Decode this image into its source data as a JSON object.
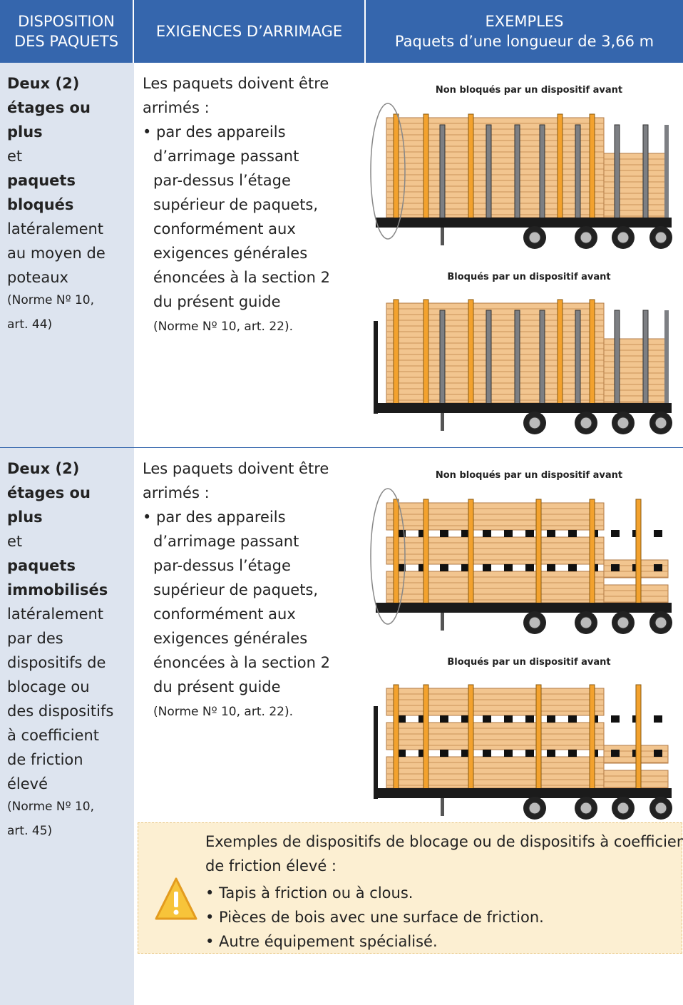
{
  "header": {
    "col1": [
      "DISPOSITION",
      "DES PAQUETS"
    ],
    "col2": [
      "EXIGENCES D’ARRIMAGE"
    ],
    "col3": [
      "EXEMPLES",
      "Paquets d’une longueur de 3,66 m"
    ]
  },
  "rows": [
    {
      "col1": [
        "Deux (2)",
        "étages ou",
        "plus",
        "et",
        "paquets",
        "bloqués",
        "latéralement",
        "au moyen de",
        "poteaux",
        "(Norme Nº 10,",
        "art. 44)"
      ],
      "col2": [
        "Les paquets doivent être",
        "arrimés :",
        "• par des appareils",
        "d’arrimage passant",
        "par-dessus l’étage",
        "supérieur de paquets,",
        "conformément aux",
        "exigences générales",
        "énoncées à la section 2",
        "du présent guide",
        "(Norme Nº 10, art. 22)."
      ],
      "captions": [
        "Non bloqués par un dispositif avant",
        "Bloqués par un dispositif avant"
      ]
    },
    {
      "col1": [
        "Deux (2)",
        "étages ou",
        "plus",
        "et",
        "paquets",
        "immobilisés",
        "latéralement",
        "par des",
        "dispositifs de",
        "blocage ou",
        "des dispositifs",
        "à coefficient",
        "de friction",
        "élevé",
        "(Norme Nº 10,",
        "art. 45)"
      ],
      "col2": [
        "Les paquets doivent être",
        "arrimés :",
        "• par des appareils",
        "d’arrimage passant",
        "par-dessus l’étage",
        "supérieur de paquets,",
        "conformément aux",
        "exigences générales",
        "énoncées à la section 2",
        "du présent guide",
        "(Norme Nº 10, art. 22)."
      ],
      "captions": [
        "Non bloqués par un dispositif avant",
        "Bloqués par un dispositif avant"
      ]
    }
  ],
  "note": {
    "lines": [
      "Exemples de dispositifs de blocage ou de dispositifs à coefficient",
      "de friction élevé :",
      "• Tapis à friction ou à clous.",
      "• Pièces de bois avec une surface de friction.",
      "• Autre équipement spécialisé."
    ]
  }
}
